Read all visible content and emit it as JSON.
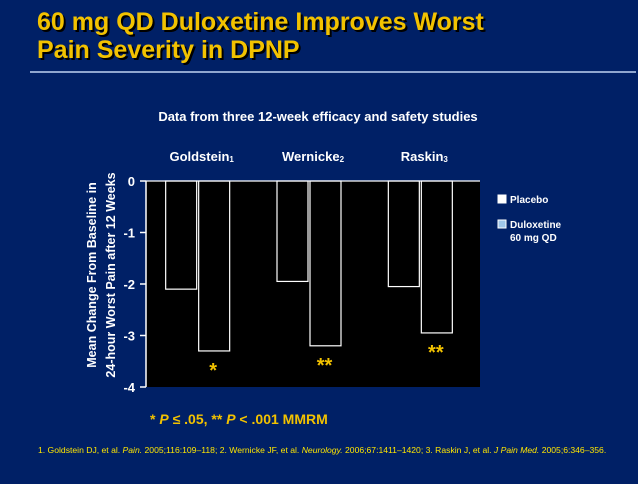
{
  "slide": {
    "title_line1": "60 mg QD Duloxetine Improves Worst",
    "title_line2": "Pain Severity in DPNP"
  },
  "chart_data": {
    "type": "bar",
    "title": "Data from three 12-week efficacy and safety studies",
    "ylabel_line1": "Mean Change From Baseline in",
    "ylabel_line2": "24-hour Worst Pain after 12 Weeks",
    "ylim": [
      -4,
      0
    ],
    "yticks": [
      "0",
      "-1",
      "-2",
      "-3",
      "-4"
    ],
    "categories": [
      {
        "name": "Goldstein",
        "ref": "1"
      },
      {
        "name": "Wernicke",
        "ref": "2"
      },
      {
        "name": "Raskin",
        "ref": "3"
      }
    ],
    "series": [
      {
        "name": "Placebo",
        "values": [
          -2.1,
          -1.95,
          -2.05
        ],
        "color": "#000000"
      },
      {
        "name": "Duloxetine 60 mg QD",
        "legend_line1": "Duloxetine",
        "legend_line2": "60 mg QD",
        "values": [
          -3.3,
          -3.2,
          -2.95
        ],
        "color": "#000000"
      }
    ],
    "significance": [
      "*",
      "**",
      "**"
    ],
    "significance_color": "#f2c200",
    "legend_position": "right",
    "note": {
      "star": "*",
      "p_symbol": "P",
      "op1": "≤",
      "val1": ".05,",
      "dstar": "**",
      "op2": "<",
      "val2": ".001 MMRM"
    }
  },
  "footnote": {
    "r1_pre": "1. Goldstein DJ, et al. ",
    "r1_journal": "Pain.",
    "r1_post": " 2005;116:109–118; 2. Wernicke JF, et al. ",
    "r2_journal": "Neurology.",
    "r2_post": " 2006;67:1411–1420; 3. Raskin J, et al. ",
    "r3_journal": "J Pain Med.",
    "r3_post": " 2005;6:346–356."
  },
  "colors": {
    "background": "#002066",
    "title": "#f2c200",
    "text": "#ffffff",
    "footnote": "#ffe600"
  }
}
